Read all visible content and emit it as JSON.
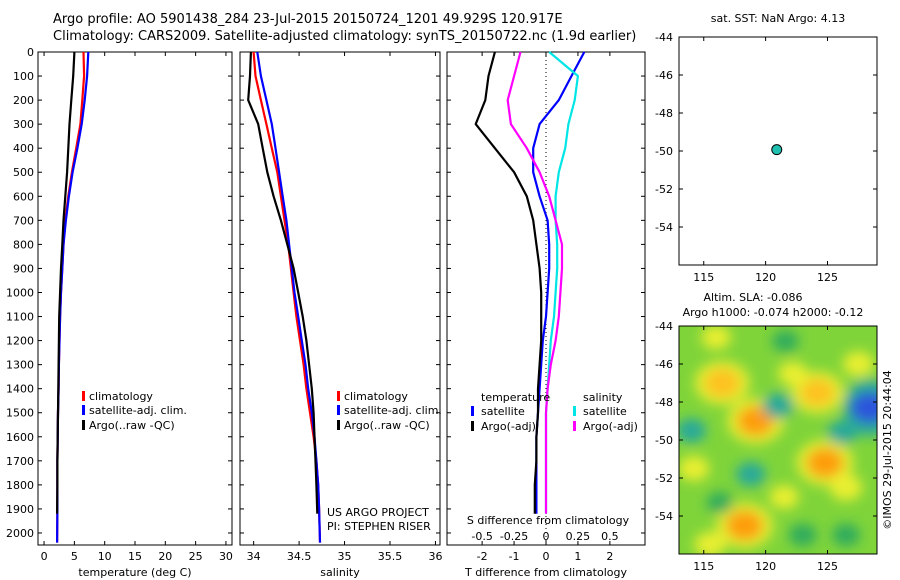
{
  "header": {
    "line1": "Argo profile: AO 5901438_284 23-Jul-2015 20150724_1201 49.929S 120.917E",
    "line2": "Climatology: CARS2009. Satellite-adjusted climatology: synTS_20150722.nc (1.9d earlier)"
  },
  "colors": {
    "climatology": "#ff0000",
    "satellite": "#0000ff",
    "argo": "#000000",
    "sat_salinity": "#00e5e5",
    "argo_salinity": "#ff00ff"
  },
  "depth_axis": {
    "ticks": [
      0,
      100,
      200,
      300,
      400,
      500,
      600,
      700,
      800,
      900,
      1000,
      1100,
      1200,
      1300,
      1400,
      1500,
      1600,
      1700,
      1800,
      1900,
      2000
    ],
    "ylim": [
      2050,
      0
    ]
  },
  "chart_data": [
    {
      "type": "line",
      "xlabel": "temperature (deg C)",
      "xlim": [
        -1,
        31
      ],
      "xticks": [
        "0",
        "5",
        "10",
        "15",
        "20",
        "25",
        "30"
      ],
      "xtick_values": [
        0,
        5,
        10,
        15,
        20,
        25,
        30
      ],
      "legend": [
        "climatology",
        "satellite-adj. clim.",
        "Argo(..raw -QC)"
      ],
      "series": [
        {
          "name": "climatology",
          "color": "#ff0000",
          "x": [
            6.5,
            6.6,
            6.3,
            6.0,
            5.3,
            4.6,
            4.0,
            3.5,
            3.2,
            3.0,
            2.8,
            2.65,
            2.55,
            2.45,
            2.4,
            2.3,
            2.25,
            2.2,
            2.2,
            2.2,
            2.15
          ],
          "y": [
            0,
            100,
            200,
            300,
            400,
            500,
            600,
            700,
            800,
            900,
            1000,
            1100,
            1200,
            1300,
            1400,
            1500,
            1600,
            1700,
            1800,
            1900,
            2040
          ]
        },
        {
          "name": "satellite-adj. clim.",
          "color": "#0000ff",
          "x": [
            7.3,
            7.1,
            6.7,
            6.2,
            5.5,
            4.7,
            4.1,
            3.6,
            3.2,
            3.0,
            2.8,
            2.65,
            2.55,
            2.45,
            2.4,
            2.3,
            2.25,
            2.2,
            2.2,
            2.2,
            2.15
          ],
          "y": [
            0,
            100,
            200,
            300,
            400,
            500,
            600,
            700,
            800,
            900,
            1000,
            1100,
            1200,
            1300,
            1400,
            1500,
            1600,
            1700,
            1800,
            1900,
            2040
          ]
        },
        {
          "name": "Argo(..raw -QC)",
          "color": "#000000",
          "x": [
            5.0,
            4.8,
            4.5,
            4.2,
            4.0,
            3.8,
            3.5,
            3.2,
            3.0,
            2.8,
            2.65,
            2.5,
            2.45,
            2.4,
            2.35,
            2.3,
            2.25,
            2.2,
            2.2,
            2.15
          ],
          "y": [
            0,
            100,
            200,
            300,
            400,
            500,
            600,
            700,
            800,
            900,
            1000,
            1100,
            1200,
            1300,
            1400,
            1500,
            1600,
            1700,
            1800,
            1920
          ]
        }
      ]
    },
    {
      "type": "line",
      "xlabel": "salinity",
      "xlim": [
        33.85,
        36.05
      ],
      "xticks": [
        "34",
        "34.5",
        "35",
        "35.5",
        "36"
      ],
      "xtick_values": [
        34,
        34.5,
        35,
        35.5,
        36
      ],
      "legend": [
        "climatology",
        "satellite-adj. clim.",
        "Argo(..raw -QC)"
      ],
      "annotation": [
        "US ARGO PROJECT",
        "PI: STEPHEN RISER"
      ],
      "series": [
        {
          "name": "climatology",
          "color": "#ff0000",
          "x": [
            34.0,
            34.02,
            34.08,
            34.14,
            34.2,
            34.26,
            34.3,
            34.34,
            34.38,
            34.41,
            34.44,
            34.47,
            34.51,
            34.55,
            34.58,
            34.62,
            34.66,
            34.69,
            34.71,
            34.72,
            34.73
          ],
          "y": [
            0,
            100,
            200,
            300,
            400,
            500,
            600,
            700,
            800,
            900,
            1000,
            1100,
            1200,
            1300,
            1400,
            1500,
            1600,
            1700,
            1800,
            1900,
            2040
          ]
        },
        {
          "name": "satellite-adj. clim.",
          "color": "#0000ff",
          "x": [
            34.04,
            34.08,
            34.14,
            34.2,
            34.24,
            34.28,
            34.32,
            34.36,
            34.39,
            34.42,
            34.45,
            34.49,
            34.53,
            34.57,
            34.6,
            34.64,
            34.67,
            34.69,
            34.71,
            34.72,
            34.73
          ],
          "y": [
            0,
            100,
            200,
            300,
            400,
            500,
            600,
            700,
            800,
            900,
            1000,
            1100,
            1200,
            1300,
            1400,
            1500,
            1600,
            1700,
            1800,
            1900,
            2040
          ]
        },
        {
          "name": "Argo(..raw -QC)",
          "color": "#000000",
          "x": [
            33.97,
            33.96,
            33.94,
            34.05,
            34.1,
            34.15,
            34.22,
            34.3,
            34.37,
            34.44,
            34.49,
            34.54,
            34.58,
            34.61,
            34.64,
            34.66,
            34.67,
            34.68,
            34.69,
            34.7
          ],
          "y": [
            0,
            100,
            200,
            300,
            400,
            500,
            600,
            700,
            800,
            900,
            1000,
            1100,
            1200,
            1300,
            1400,
            1500,
            1600,
            1700,
            1800,
            1920
          ]
        }
      ]
    },
    {
      "type": "line",
      "xlabel": "T difference from climatology",
      "toplabel": "S difference from climatology",
      "xlim": [
        -3.1,
        3.1
      ],
      "xticks": [
        "-2",
        "-1",
        "0",
        "1",
        "2"
      ],
      "xtick_values": [
        -2,
        -1,
        0,
        1,
        2
      ],
      "s_xticks": [
        "-0.5",
        "-0.25",
        "0",
        "0.25",
        "0.5"
      ],
      "s_xtick_values": [
        -2,
        -1,
        0,
        1,
        2
      ],
      "legend_temperature": "temperature",
      "legend_salinity": "salinity",
      "legend": [
        "satellite",
        "Argo(-adj)",
        "satellite",
        "Argo(-adj)"
      ],
      "series": [
        {
          "name": "satellite",
          "color": "#0000ff",
          "x": [
            1.2,
            0.8,
            0.4,
            -0.2,
            -0.4,
            -0.4,
            -0.2,
            0.05,
            0.1,
            0.1,
            0.05,
            0,
            -0.1,
            -0.15,
            -0.2,
            -0.25,
            -0.3,
            -0.3,
            -0.3,
            -0.3
          ],
          "y": [
            0,
            100,
            200,
            300,
            400,
            500,
            600,
            700,
            800,
            900,
            1000,
            1100,
            1200,
            1300,
            1400,
            1500,
            1600,
            1700,
            1800,
            1920
          ]
        },
        {
          "name": "Argo(-adj)",
          "color": "#000000",
          "x": [
            -1.6,
            -1.8,
            -1.9,
            -2.2,
            -1.6,
            -1.0,
            -0.6,
            -0.4,
            -0.3,
            -0.2,
            -0.15,
            -0.15,
            -0.15,
            -0.2,
            -0.25,
            -0.25,
            -0.3,
            -0.3,
            -0.35,
            -0.35
          ],
          "y": [
            0,
            100,
            200,
            300,
            400,
            500,
            600,
            700,
            800,
            900,
            1000,
            1100,
            1200,
            1300,
            1400,
            1500,
            1600,
            1700,
            1800,
            1920
          ]
        },
        {
          "name": "satellite",
          "color": "#00e5e5",
          "x": [
            0.1,
            1.0,
            0.9,
            0.7,
            0.6,
            0.4,
            0.3,
            0.3,
            0.35,
            0.35,
            0.3,
            0.25,
            0.15,
            0.1,
            0.05,
            0.0,
            0.0,
            0.0,
            0.0,
            0.0
          ],
          "y": [
            0,
            100,
            200,
            300,
            400,
            500,
            600,
            700,
            800,
            900,
            1000,
            1100,
            1200,
            1300,
            1400,
            1500,
            1600,
            1700,
            1800,
            1920
          ]
        },
        {
          "name": "Argo(-adj)",
          "color": "#ff00ff",
          "x": [
            -0.8,
            -1.0,
            -1.2,
            -1.1,
            -0.6,
            -0.2,
            0.1,
            0.3,
            0.5,
            0.5,
            0.45,
            0.4,
            0.3,
            0.15,
            0.05,
            0,
            0,
            0,
            0,
            0
          ],
          "y": [
            0,
            100,
            200,
            300,
            400,
            500,
            600,
            700,
            800,
            900,
            1000,
            1100,
            1200,
            1300,
            1400,
            1500,
            1600,
            1700,
            1800,
            1920
          ]
        }
      ]
    },
    {
      "type": "scatter",
      "title": "sat. SST: NaN Argo: 4.13",
      "xlim": [
        113,
        129
      ],
      "ylim": [
        -56,
        -44
      ],
      "xticks": [
        "115",
        "120",
        "125"
      ],
      "xtick_values": [
        115,
        120,
        125
      ],
      "yticks": [
        "-44",
        "-46",
        "-48",
        "-50",
        "-52",
        "-54"
      ],
      "ytick_values": [
        -44,
        -46,
        -48,
        -50,
        -52,
        -54
      ],
      "point": {
        "x": 120.9,
        "y": -49.93,
        "color": "#20c0b0"
      }
    },
    {
      "type": "heatmap",
      "title1": "Altim. SLA: -0.086",
      "title2": "Argo h1000: -0.074 h2000: -0.12",
      "xlim": [
        113,
        129
      ],
      "ylim": [
        -56,
        -44
      ],
      "xticks": [
        "115",
        "120",
        "125"
      ],
      "xtick_values": [
        115,
        120,
        125
      ],
      "yticks": [
        "-44",
        "-46",
        "-48",
        "-50",
        "-52",
        "-54"
      ],
      "ytick_values": [
        -44,
        -46,
        -48,
        -50,
        -52,
        -54
      ],
      "credit": "©IMOS 29-Jul-2015 20:44:04",
      "blobs": [
        {
          "x": 116.5,
          "y": -47.0,
          "v": 0.9
        },
        {
          "x": 119.2,
          "y": -49.0,
          "v": 1.0
        },
        {
          "x": 118.3,
          "y": -54.5,
          "v": 1.0
        },
        {
          "x": 122.2,
          "y": -46.5,
          "v": 0.5
        },
        {
          "x": 124.2,
          "y": -47.5,
          "v": 0.8
        },
        {
          "x": 124.8,
          "y": -51.2,
          "v": 1.0
        },
        {
          "x": 126.5,
          "y": -52.5,
          "v": 0.7
        },
        {
          "x": 127.5,
          "y": -46.0,
          "v": 0.6
        },
        {
          "x": 121.5,
          "y": -53.0,
          "v": 0.5
        },
        {
          "x": 114.2,
          "y": -51.5,
          "v": 0.6
        },
        {
          "x": 116.0,
          "y": -44.6,
          "v": 0.5
        },
        {
          "x": 115.5,
          "y": -55.5,
          "v": 0.6
        },
        {
          "x": 128.4,
          "y": -48.3,
          "v": -1.1
        },
        {
          "x": 121.0,
          "y": -48.2,
          "v": -0.6
        },
        {
          "x": 126.2,
          "y": -49.6,
          "v": -0.5
        },
        {
          "x": 114.0,
          "y": -49.5,
          "v": -0.5
        },
        {
          "x": 118.8,
          "y": -51.8,
          "v": -0.5
        },
        {
          "x": 123.0,
          "y": -55.0,
          "v": -0.4
        },
        {
          "x": 126.5,
          "y": -55.0,
          "v": -0.4
        },
        {
          "x": 121.6,
          "y": -44.8,
          "v": -0.3
        },
        {
          "x": 116.3,
          "y": -53.3,
          "v": -0.3
        }
      ]
    }
  ]
}
